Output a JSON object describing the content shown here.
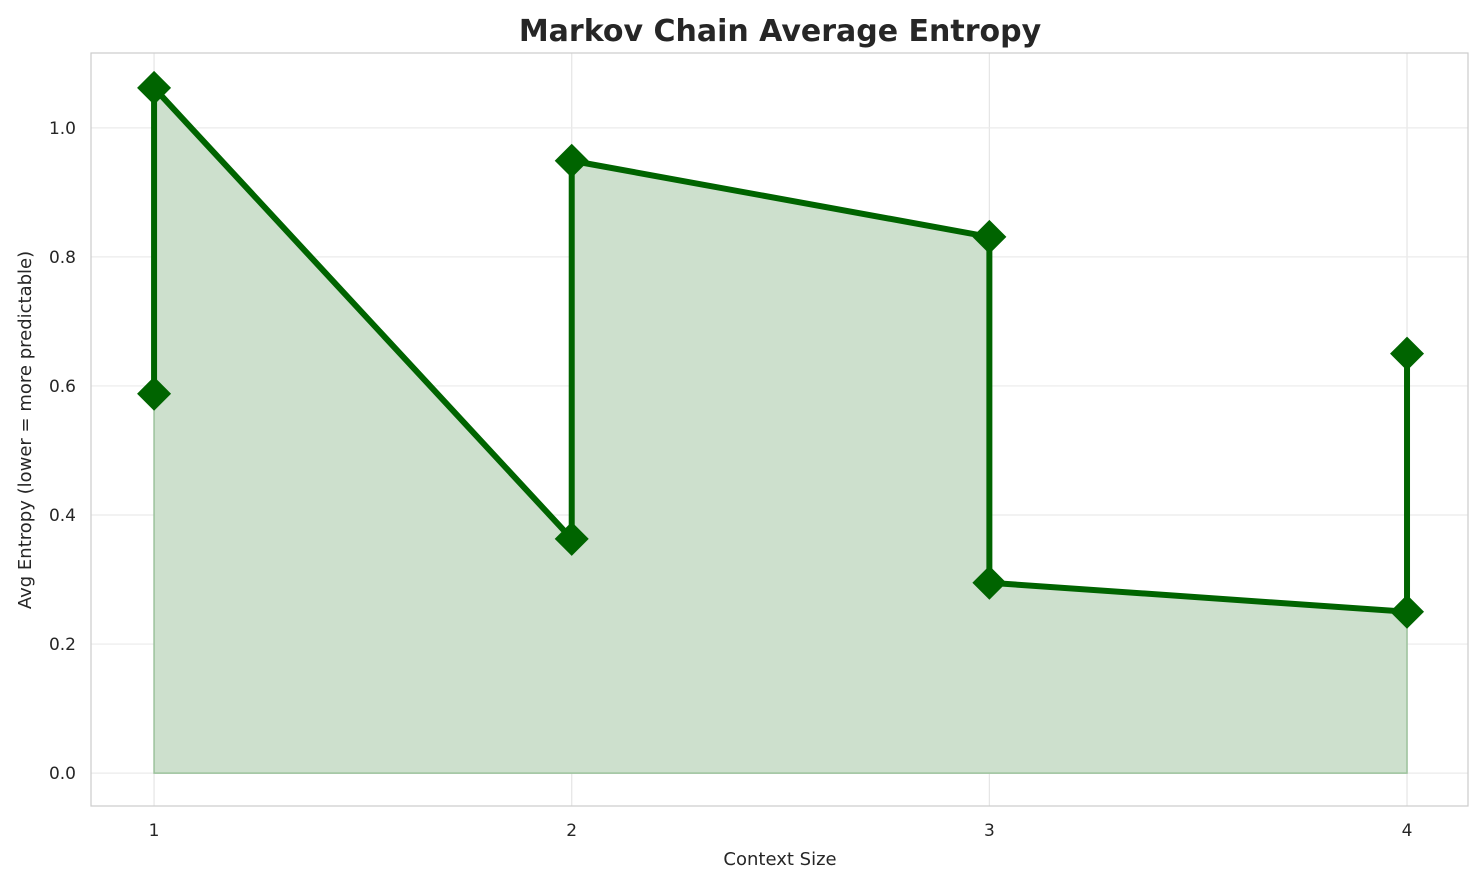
{
  "chart_data": {
    "type": "line",
    "title": "Markov Chain Average Entropy",
    "xlabel": "Context Size",
    "ylabel": "Avg Entropy (lower = more predictable)",
    "x": [
      1,
      1,
      2,
      2,
      3,
      3,
      4,
      4
    ],
    "y": [
      0.588,
      1.062,
      0.363,
      0.949,
      0.831,
      0.295,
      0.25,
      0.65
    ],
    "xticks": [
      "1",
      "2",
      "3",
      "4"
    ],
    "yticks": [
      "0.0",
      "0.2",
      "0.4",
      "0.6",
      "0.8",
      "1.0"
    ],
    "xlim": [
      0.849,
      4.146
    ],
    "ylim": [
      -0.051,
      1.116
    ],
    "grid": true,
    "fill_to_zero": true,
    "marker": "diamond",
    "colors": {
      "line": "#006400",
      "fill": "#cde0cd"
    }
  }
}
